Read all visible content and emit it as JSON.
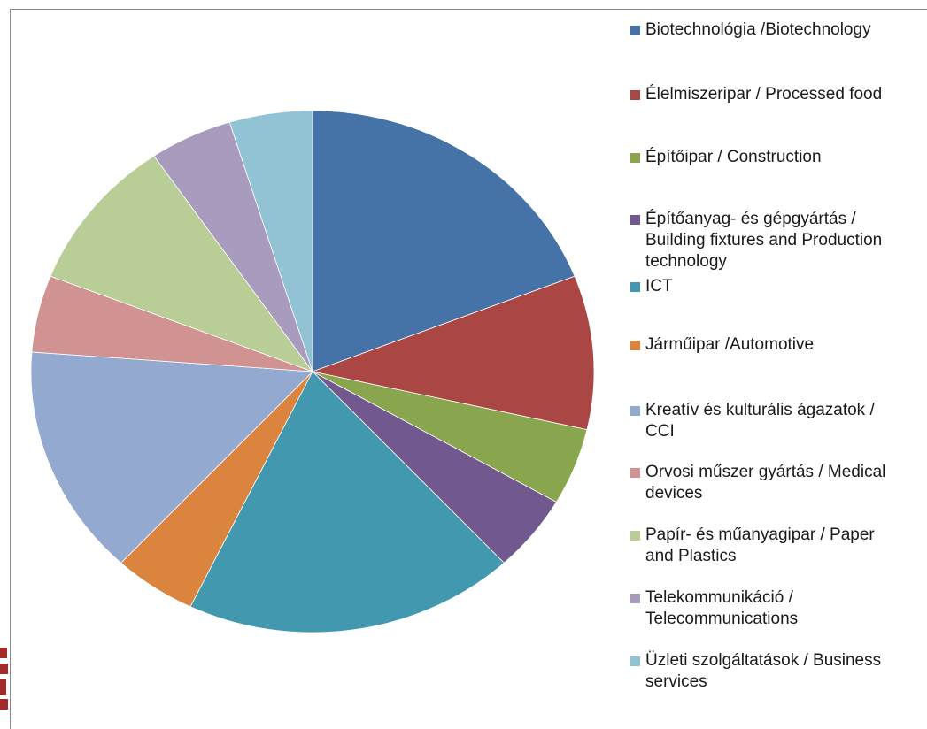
{
  "chart_data": {
    "type": "pie",
    "title": "",
    "legend_position": "right",
    "slices": [
      {
        "label": "Biotechnológia /Biotechnology",
        "value": 20,
        "color": "#4572A7"
      },
      {
        "label": "Élelmiszeripar / Processed food",
        "value": 10,
        "color": "#AA4643"
      },
      {
        "label": "Építőipar / Construction",
        "value": 5,
        "color": "#89A54E"
      },
      {
        "label": "Építőanyag- és gépgyártás /\n Building fixtures and Production technology",
        "value": 5,
        "color": "#71588F"
      },
      {
        "label": "ICT",
        "value": 20,
        "color": "#4198AF"
      },
      {
        "label": "Járműipar /Automotive",
        "value": 5,
        "color": "#DB843D"
      },
      {
        "label": "Kreatív és kulturális ágazatok /\nCCI",
        "value": 15,
        "color": "#93A9CF"
      },
      {
        "label": "Orvosi műszer gyártás / Medical\ndevices",
        "value": 5,
        "color": "#D19392"
      },
      {
        "label": "Papír- és műanyagipar / Paper\nand Plastics",
        "value": 10,
        "color": "#B9CD96"
      },
      {
        "label": "Telekommunikáció /\nTelecommunications",
        "value": 5,
        "color": "#A99BBD"
      },
      {
        "label": "Üzleti szolgáltatások / Business\nservices",
        "value": 5,
        "color": "#92C3D4"
      }
    ]
  }
}
